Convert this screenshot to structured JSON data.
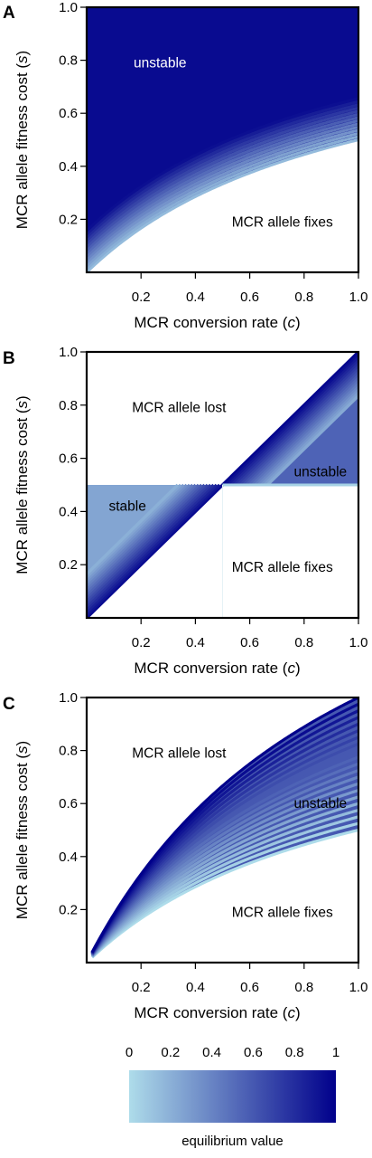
{
  "colors": {
    "low": "#aedcea",
    "high": "#00008b",
    "frame": "#000000"
  },
  "colorbar": {
    "ticks": [
      "0",
      "0.2",
      "0.4",
      "0.6",
      "0.8",
      "1"
    ],
    "title": "equilibrium value"
  },
  "chart_data": [
    {
      "type": "heatmap",
      "panel": "A",
      "xlabel": "MCR conversion rate (c)",
      "xlabel_main": "MCR conversion rate (",
      "xlabel_var": "c",
      "xlabel_close": ")",
      "ylabel": "MCR allele fitness cost (s)",
      "ylabel_main": "MCR allele fitness cost (",
      "ylabel_var": "s",
      "ylabel_close": ")",
      "xlim": [
        0,
        1
      ],
      "ylim": [
        0,
        1
      ],
      "xticks": [
        "0.2",
        "0.4",
        "0.6",
        "0.8",
        "1.0"
      ],
      "yticks": [
        "0.2",
        "0.4",
        "0.6",
        "0.8",
        "1.0"
      ],
      "boundary": "s = c/(1+c)",
      "regions": [
        {
          "label": "unstable",
          "x": 0.27,
          "y": 0.79
        },
        {
          "label": "MCR allele fixes",
          "x": 0.72,
          "y": 0.19
        }
      ]
    },
    {
      "type": "heatmap",
      "panel": "B",
      "xlabel": "MCR conversion rate (c)",
      "xlabel_main": "MCR conversion rate (",
      "xlabel_var": "c",
      "xlabel_close": ")",
      "ylabel": "MCR allele fitness cost (s)",
      "ylabel_main": "MCR allele fitness cost (",
      "ylabel_var": "s",
      "ylabel_close": ")",
      "xlim": [
        0,
        1
      ],
      "ylim": [
        0,
        1
      ],
      "xticks": [
        "0.2",
        "0.4",
        "0.6",
        "0.8",
        "1.0"
      ],
      "yticks": [
        "0.2",
        "0.4",
        "0.6",
        "0.8",
        "1.0"
      ],
      "boundary": "s = c and s = 0.5",
      "regions": [
        {
          "label": "MCR allele lost",
          "x": 0.34,
          "y": 0.79
        },
        {
          "label": "unstable",
          "x": 0.86,
          "y": 0.55
        },
        {
          "label": "stable",
          "x": 0.15,
          "y": 0.42
        },
        {
          "label": "MCR allele fixes",
          "x": 0.72,
          "y": 0.19
        }
      ]
    },
    {
      "type": "heatmap",
      "panel": "C",
      "xlabel": "MCR conversion rate (c)",
      "xlabel_main": "MCR conversion rate (",
      "xlabel_var": "c",
      "xlabel_close": ")",
      "ylabel": "MCR allele fitness cost (s)",
      "ylabel_main": "MCR allele fitness cost (",
      "ylabel_var": "s",
      "ylabel_close": ")",
      "xlim": [
        0,
        1
      ],
      "ylim": [
        0,
        1
      ],
      "xticks": [
        "0.2",
        "0.4",
        "0.6",
        "0.8",
        "1.0"
      ],
      "yticks": [
        "0.2",
        "0.4",
        "0.6",
        "0.8",
        "1.0"
      ],
      "boundary": "c/(1+c) < s < 2c/(1+c)",
      "regions": [
        {
          "label": "MCR allele lost",
          "x": 0.34,
          "y": 0.79
        },
        {
          "label": "unstable",
          "x": 0.86,
          "y": 0.6
        },
        {
          "label": "MCR allele fixes",
          "x": 0.72,
          "y": 0.19
        }
      ]
    }
  ]
}
